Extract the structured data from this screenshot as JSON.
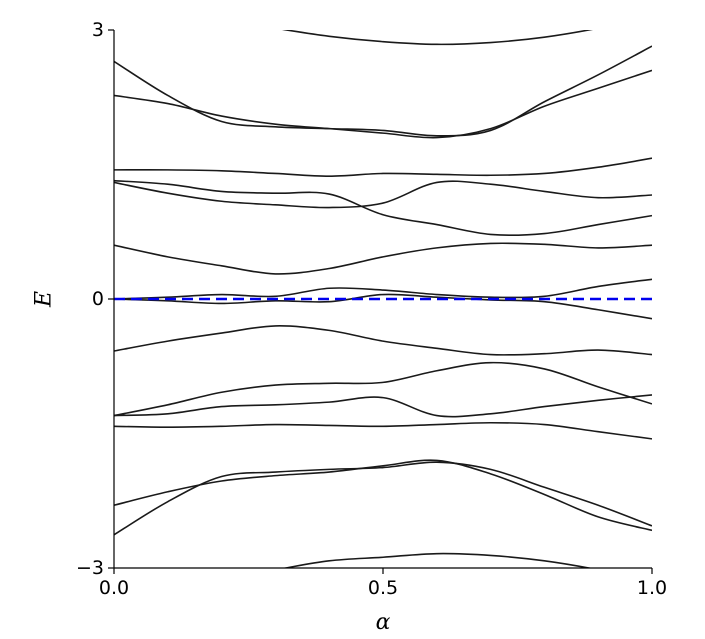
{
  "chart_data": {
    "type": "line",
    "xlabel": "α",
    "ylabel": "E",
    "xlim": [
      0.0,
      1.0
    ],
    "ylim": [
      -3,
      3
    ],
    "xticks": [
      0.0,
      0.5,
      1.0
    ],
    "xtick_labels": [
      "0.0",
      "0.5",
      "1.0"
    ],
    "yticks": [
      -3,
      0,
      3
    ],
    "ytick_labels": [
      "−3",
      "0",
      "3"
    ],
    "grid": false,
    "spines": [
      "left",
      "bottom"
    ],
    "line_color": "#1a1a1a",
    "reference_line": {
      "y": 0,
      "style": "dashed",
      "color": "#0000ee"
    },
    "x": [
      0.0,
      0.1,
      0.2,
      0.3,
      0.4,
      0.5,
      0.6,
      0.7,
      0.8,
      0.9,
      1.0
    ],
    "series": [
      {
        "values": [
          3.38,
          3.25,
          3.12,
          3.02,
          2.93,
          2.87,
          2.84,
          2.86,
          2.92,
          3.02,
          3.15
        ]
      },
      {
        "values": [
          2.65,
          2.27,
          1.98,
          1.92,
          1.9,
          1.88,
          1.82,
          1.88,
          2.2,
          2.5,
          2.82
        ]
      },
      {
        "values": [
          2.27,
          2.18,
          2.04,
          1.95,
          1.9,
          1.85,
          1.8,
          1.9,
          2.15,
          2.35,
          2.55
        ]
      },
      {
        "values": [
          1.44,
          1.44,
          1.43,
          1.4,
          1.37,
          1.4,
          1.39,
          1.38,
          1.4,
          1.47,
          1.57
        ]
      },
      {
        "values": [
          1.3,
          1.18,
          1.09,
          1.05,
          1.02,
          1.07,
          1.3,
          1.28,
          1.2,
          1.13,
          1.16
        ]
      },
      {
        "values": [
          1.32,
          1.28,
          1.2,
          1.18,
          1.17,
          0.94,
          0.83,
          0.72,
          0.73,
          0.83,
          0.93
        ]
      },
      {
        "values": [
          0.6,
          0.47,
          0.37,
          0.28,
          0.34,
          0.47,
          0.57,
          0.62,
          0.61,
          0.57,
          0.6
        ]
      },
      {
        "values": [
          0.0,
          0.02,
          0.05,
          0.03,
          0.12,
          0.1,
          0.05,
          0.02,
          0.03,
          0.14,
          0.22
        ]
      },
      {
        "values": [
          0.0,
          -0.02,
          -0.05,
          -0.02,
          -0.03,
          0.05,
          0.02,
          -0.01,
          -0.03,
          -0.12,
          -0.22
        ]
      },
      {
        "values": [
          -0.58,
          -0.47,
          -0.38,
          -0.3,
          -0.35,
          -0.47,
          -0.55,
          -0.62,
          -0.61,
          -0.57,
          -0.62
        ]
      },
      {
        "values": [
          -1.3,
          -1.18,
          -1.04,
          -0.96,
          -0.94,
          -0.93,
          -0.8,
          -0.71,
          -0.78,
          -0.98,
          -1.17
        ]
      },
      {
        "values": [
          -1.3,
          -1.28,
          -1.2,
          -1.18,
          -1.15,
          -1.1,
          -1.3,
          -1.28,
          -1.2,
          -1.13,
          -1.07
        ]
      },
      {
        "values": [
          -1.42,
          -1.43,
          -1.42,
          -1.4,
          -1.41,
          -1.42,
          -1.4,
          -1.38,
          -1.4,
          -1.48,
          -1.56
        ]
      },
      {
        "values": [
          -2.3,
          -2.15,
          -2.03,
          -1.97,
          -1.93,
          -1.86,
          -1.8,
          -1.95,
          -2.18,
          -2.43,
          -2.58
        ]
      },
      {
        "values": [
          -2.63,
          -2.26,
          -1.98,
          -1.93,
          -1.9,
          -1.88,
          -1.82,
          -1.9,
          -2.1,
          -2.3,
          -2.53
        ]
      },
      {
        "values": [
          -3.38,
          -3.25,
          -3.12,
          -3.02,
          -2.92,
          -2.88,
          -2.84,
          -2.86,
          -2.92,
          -3.02,
          -3.15
        ]
      }
    ]
  }
}
